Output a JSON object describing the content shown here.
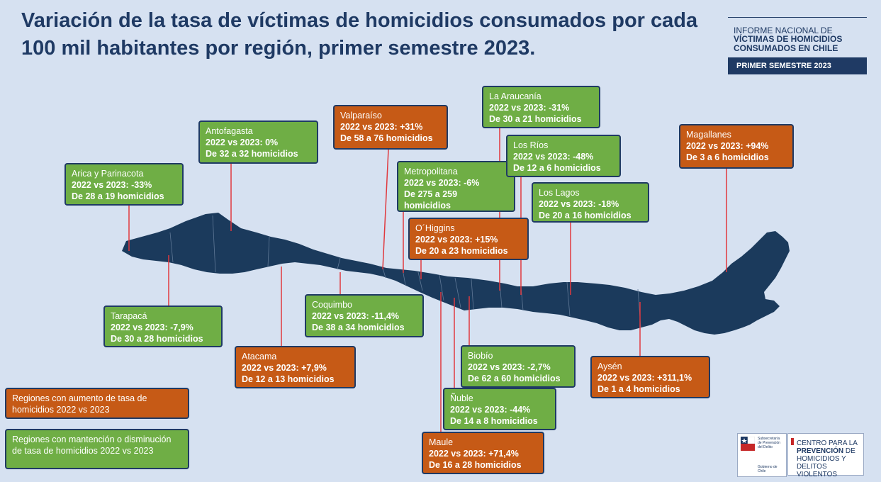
{
  "title": "Variación de la tasa de víctimas de homicidios consumados por cada 100 mil habitantes por región, primer semestre 2023.",
  "report": {
    "line1": "INFORME NACIONAL DE",
    "line2": "VÍCTIMAS DE HOMICIDIOS",
    "line3": "CONSUMADOS EN CHILE",
    "band": "PRIMER SEMESTRE 2023"
  },
  "colors": {
    "increase": "#c65a16",
    "decrease": "#6fae45",
    "map": "#1b3a5c",
    "leader": "#e0393e"
  },
  "regions": [
    {
      "id": "arica",
      "name": "Arica y Parinacota",
      "comparison": "2022 vs 2023: -33%",
      "count": "De 28 a 19 homicidios",
      "trend": "decrease"
    },
    {
      "id": "tarapaca",
      "name": "Tarapacá",
      "comparison": "2022 vs 2023: -7,9%",
      "count": "De 30 a 28 homicidios",
      "trend": "decrease"
    },
    {
      "id": "antofagasta",
      "name": "Antofagasta",
      "comparison": "2022 vs 2023: 0%",
      "count": "De 32 a 32 homicidios",
      "trend": "decrease"
    },
    {
      "id": "atacama",
      "name": "Atacama",
      "comparison": "2022 vs 2023: +7,9%",
      "count": "De 12 a 13 homicidios",
      "trend": "increase"
    },
    {
      "id": "coquimbo",
      "name": "Coquimbo",
      "comparison": "2022 vs 2023: -11,4%",
      "count": "De 38 a 34 homicidios",
      "trend": "decrease"
    },
    {
      "id": "valparaiso",
      "name": "Valparaíso",
      "comparison": "2022 vs 2023: +31%",
      "count": "De 58 a 76 homicidios",
      "trend": "increase"
    },
    {
      "id": "metropolitana",
      "name": "Metropolitana",
      "comparison": "2022 vs 2023: -6%",
      "count": "De 275 a 259 homicidios",
      "trend": "decrease"
    },
    {
      "id": "ohiggins",
      "name": "O´Higgins",
      "comparison": "2022 vs 2023: +15%",
      "count": "De 20 a 23 homicidios",
      "trend": "increase"
    },
    {
      "id": "maule",
      "name": "Maule",
      "comparison": "2022 vs 2023: +71,4%",
      "count": "De 16 a 28 homicidios",
      "trend": "increase"
    },
    {
      "id": "nuble",
      "name": "Ñuble",
      "comparison": "2022 vs 2023: -44%",
      "count": "De 14 a 8 homicidios",
      "trend": "decrease"
    },
    {
      "id": "biobio",
      "name": "Biobío",
      "comparison": "2022 vs 2023: -2,7%",
      "count": "De 62 a 60 homicidios",
      "trend": "decrease"
    },
    {
      "id": "araucania",
      "name": "La Araucanía",
      "comparison": "2022 vs 2023: -31%",
      "count": "De 30 a 21 homicidios",
      "trend": "decrease"
    },
    {
      "id": "losrios",
      "name": "Los Ríos",
      "comparison": "2022 vs 2023: -48%",
      "count": "De 12 a 6 homicidios",
      "trend": "decrease"
    },
    {
      "id": "loslagos",
      "name": "Los Lagos",
      "comparison": "2022 vs 2023: -18%",
      "count": "De 20 a 16 homicidios",
      "trend": "decrease"
    },
    {
      "id": "aysen",
      "name": "Aysén",
      "comparison": "2022 vs 2023: +311,1%",
      "count": "De 1 a 4 homicidios",
      "trend": "increase"
    },
    {
      "id": "magallanes",
      "name": "Magallanes",
      "comparison": "2022 vs 2023: +94%",
      "count": "De 3 a 6 homicidios",
      "trend": "increase"
    }
  ],
  "legend": {
    "increase": "Regiones con aumento de tasa de homicidios 2022 vs 2023",
    "decrease": "Regiones con mantención o disminución de tasa de homicidios 2022 vs 2023"
  },
  "logos": {
    "subsecretaria": "Subsecretaría de Prevención del Delito",
    "gobierno": "Gobierno de Chile",
    "centro_line1": "CENTRO PARA LA",
    "centro_line2": "PREVENCIÓN",
    "centro_line2b": " DE",
    "centro_line3": "HOMICIDIOS Y",
    "centro_line4": "DELITOS VIOLENTOS"
  }
}
